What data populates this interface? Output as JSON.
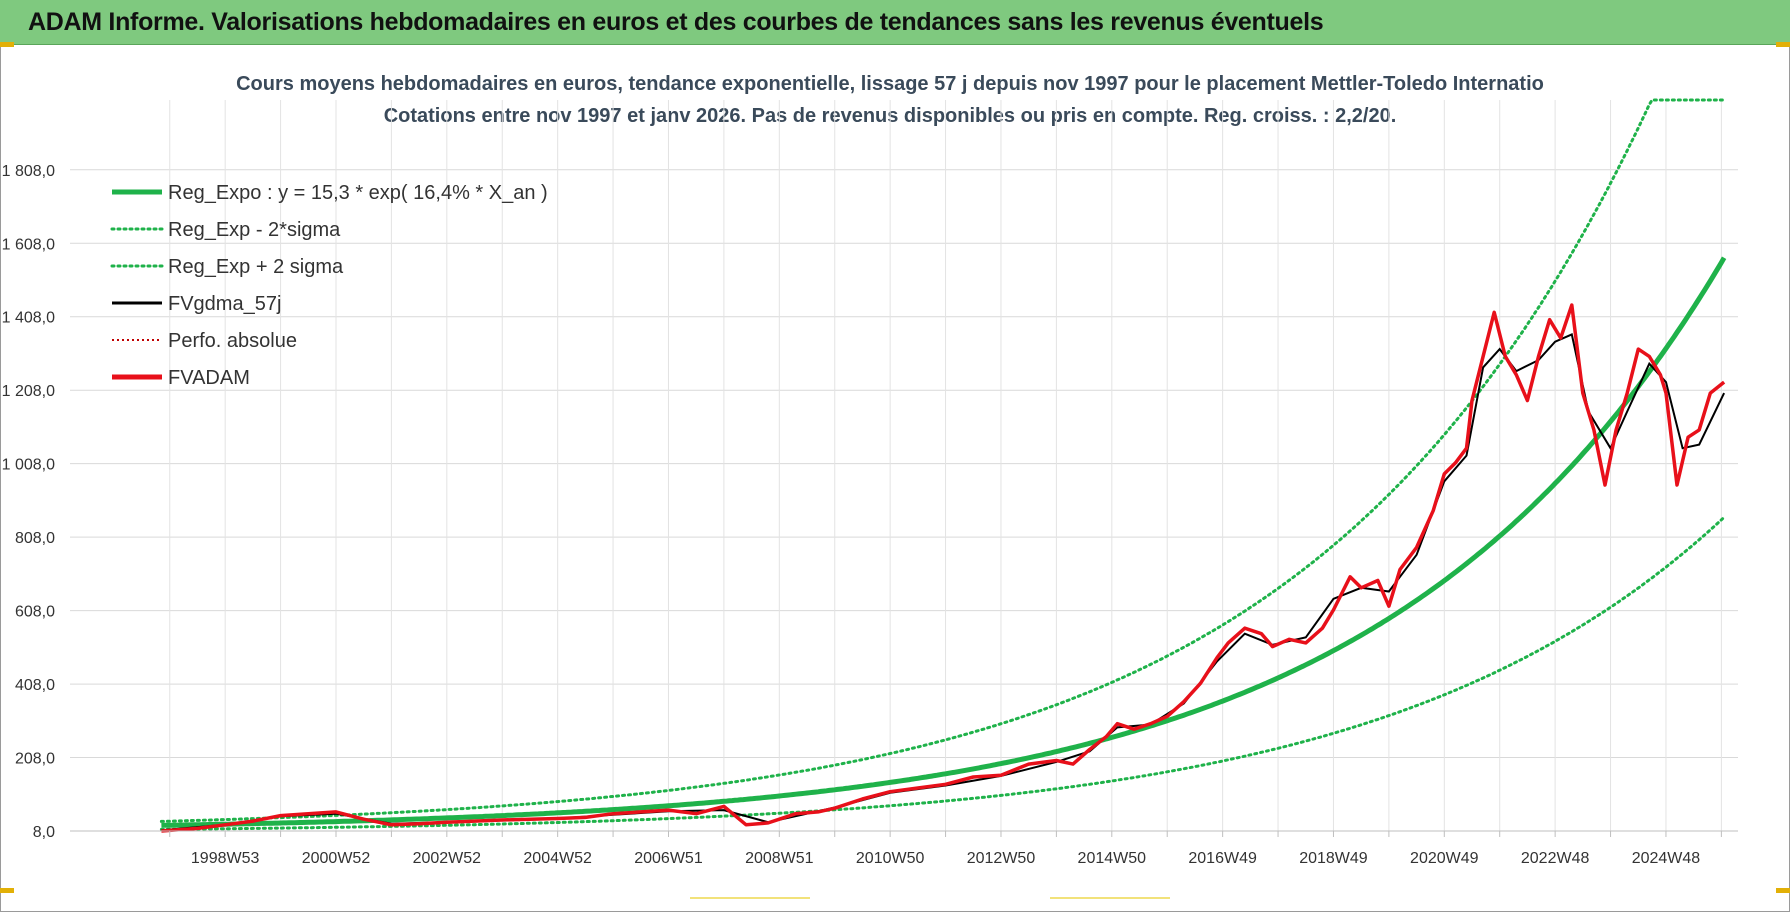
{
  "banner": {
    "title": "ADAM Informe. Valorisations hebdomadaires en euros et des courbes de tendances sans les revenus éventuels"
  },
  "chart_data": {
    "type": "line",
    "title_line1": "Cours moyens hebdomadaires en euros, tendance exponentielle, lissage 57 j depuis nov 1997  pour le placement Mettler-Toledo Internatio",
    "title_line2": "Cotations entre nov 1997 et janv 2026. Pas de revenus disponibles ou pris en compte. Reg. croiss. : 2,2/20.",
    "y_tick_labels": [
      "8,0",
      "208,0",
      "408,0",
      "608,0",
      "808,0",
      "1 008,0",
      "1 208,0",
      "1 408,0",
      "1 608,0",
      "1 808,0"
    ],
    "y_ticks": [
      8,
      208,
      408,
      608,
      808,
      1008,
      1208,
      1408,
      1608,
      1808
    ],
    "ylim": [
      8,
      1998
    ],
    "x_tick_labels": [
      "1998W53",
      "2000W52",
      "2002W52",
      "2004W52",
      "2006W51",
      "2008W51",
      "2010W50",
      "2012W50",
      "2014W50",
      "2016W49",
      "2018W49",
      "2020W49",
      "2022W48",
      "2024W48"
    ],
    "x_tick_years": [
      1999.0,
      2001.0,
      2003.0,
      2005.0,
      2007.0,
      2009.0,
      2011.0,
      2013.0,
      2015.0,
      2017.0,
      2019.0,
      2021.0,
      2023.0,
      2025.0
    ],
    "xlim": [
      1996.2,
      2026.3
    ],
    "start_year": 1997.85,
    "end_year": 2026.05,
    "legend": [
      {
        "name": "Reg_Expo : y = 15,3 * exp( 16,4% *  X_an )",
        "style": "solid-thick",
        "color": "#1fb24a"
      },
      {
        "name": "Reg_Exp - 2*sigma",
        "style": "dotted",
        "color": "#1fb24a"
      },
      {
        "name": "Reg_Exp + 2 sigma",
        "style": "dotted",
        "color": "#1fb24a"
      },
      {
        "name": "FVgdma_57j",
        "style": "solid",
        "color": "#000000"
      },
      {
        "name": "Perfo. absolue",
        "style": "dotted-thin",
        "color": "#c00000"
      },
      {
        "name": "FVADAM",
        "style": "solid-thick",
        "color": "#e8101a"
      }
    ],
    "regression": {
      "a": 15.3,
      "rate": 0.164,
      "upper_factor": 1.58,
      "lower_factor": 0.55,
      "upper_cap": 1998
    },
    "fvadam": {
      "x": [
        1997.85,
        1998.5,
        1999.0,
        1999.5,
        2000.0,
        2000.5,
        2001.0,
        2001.5,
        2002.0,
        2002.5,
        2003.0,
        2003.5,
        2004.0,
        2004.5,
        2005.0,
        2005.5,
        2006.0,
        2006.5,
        2007.0,
        2007.5,
        2008.0,
        2008.4,
        2008.8,
        2009.0,
        2009.3,
        2009.7,
        2010.0,
        2010.5,
        2011.0,
        2011.5,
        2012.0,
        2012.5,
        2013.0,
        2013.5,
        2014.0,
        2014.3,
        2014.6,
        2014.9,
        2015.1,
        2015.4,
        2015.7,
        2016.0,
        2016.3,
        2016.6,
        2016.9,
        2017.1,
        2017.4,
        2017.7,
        2017.9,
        2018.2,
        2018.5,
        2018.8,
        2019.0,
        2019.3,
        2019.5,
        2019.8,
        2020.0,
        2020.2,
        2020.5,
        2020.8,
        2021.0,
        2021.2,
        2021.4,
        2021.5,
        2021.7,
        2021.9,
        2022.1,
        2022.3,
        2022.5,
        2022.7,
        2022.9,
        2023.1,
        2023.3,
        2023.5,
        2023.7,
        2023.9,
        2024.1,
        2024.3,
        2024.5,
        2024.7,
        2024.9,
        2025.0,
        2025.2,
        2025.4,
        2025.6,
        2025.8,
        2026.05
      ],
      "y": [
        8,
        15,
        25,
        35,
        50,
        55,
        60,
        40,
        25,
        28,
        32,
        35,
        38,
        40,
        42,
        45,
        55,
        60,
        65,
        55,
        75,
        25,
        30,
        40,
        55,
        60,
        70,
        95,
        115,
        125,
        135,
        155,
        160,
        190,
        200,
        190,
        230,
        265,
        300,
        285,
        300,
        320,
        360,
        410,
        480,
        520,
        560,
        545,
        510,
        530,
        520,
        560,
        610,
        700,
        670,
        690,
        620,
        720,
        780,
        880,
        980,
        1010,
        1050,
        1180,
        1300,
        1420,
        1300,
        1250,
        1180,
        1300,
        1400,
        1350,
        1440,
        1200,
        1100,
        950,
        1100,
        1200,
        1320,
        1300,
        1250,
        1200,
        950,
        1080,
        1100,
        1200,
        1230
      ]
    },
    "fvgdma": {
      "x": [
        1997.85,
        1999.0,
        2000.0,
        2001.0,
        2002.0,
        2003.0,
        2004.0,
        2005.0,
        2006.0,
        2007.0,
        2008.0,
        2008.8,
        2009.5,
        2010.0,
        2011.0,
        2012.0,
        2013.0,
        2014.0,
        2014.6,
        2015.1,
        2015.7,
        2016.3,
        2016.9,
        2017.4,
        2017.9,
        2018.5,
        2019.0,
        2019.5,
        2020.0,
        2020.5,
        2021.0,
        2021.4,
        2021.7,
        2022.0,
        2022.3,
        2022.7,
        2023.0,
        2023.3,
        2023.6,
        2024.0,
        2024.3,
        2024.7,
        2025.0,
        2025.3,
        2025.6,
        2026.05
      ],
      "y": [
        10,
        25,
        48,
        55,
        28,
        32,
        38,
        42,
        52,
        62,
        65,
        32,
        55,
        72,
        112,
        132,
        158,
        196,
        225,
        290,
        298,
        355,
        470,
        545,
        515,
        535,
        640,
        670,
        660,
        760,
        960,
        1030,
        1270,
        1320,
        1260,
        1290,
        1340,
        1360,
        1150,
        1050,
        1150,
        1280,
        1230,
        1050,
        1060,
        1200
      ]
    }
  }
}
